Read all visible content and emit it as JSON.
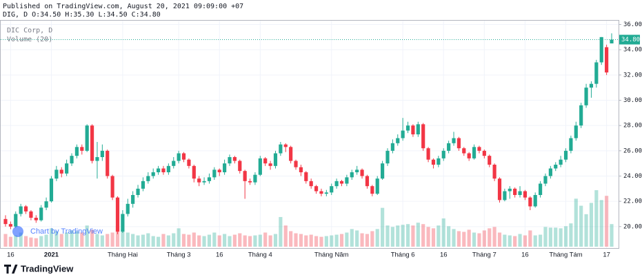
{
  "chart_data": {
    "type": "candlestick",
    "published": "Published on TradingView.com, August 20, 2021 09:09:00 +07",
    "ohlc_header": "DIG, D O:34.50 H:35.30 L:34.50 C:34.80",
    "legend": [
      "DIC Corp, D",
      "Volume (20)"
    ],
    "watermark": "Chart by TradingView",
    "footer_brand": "TradingView",
    "up_color": "#22ab94",
    "down_color": "#f23645",
    "grid": true,
    "ylim": [
      18.3,
      36.3
    ],
    "yticks": [
      {
        "value": 20,
        "label": "20.00"
      },
      {
        "value": 22,
        "label": "22.00"
      },
      {
        "value": 24,
        "label": "24.00"
      },
      {
        "value": 26,
        "label": "26.00"
      },
      {
        "value": 28,
        "label": "28.00"
      },
      {
        "value": 30,
        "label": "30.00"
      },
      {
        "value": 32,
        "label": "32.00"
      },
      {
        "value": 34,
        "label": "34.00"
      },
      {
        "value": 36,
        "label": "36.00"
      }
    ],
    "last_value_label": "34.80",
    "categories": [
      null,
      "16",
      null,
      null,
      null,
      null,
      null,
      null,
      null,
      "2021",
      null,
      null,
      null,
      null,
      null,
      null,
      null,
      null,
      null,
      null,
      null,
      null,
      null,
      "Tháng Hai",
      null,
      null,
      null,
      null,
      null,
      null,
      null,
      null,
      null,
      null,
      "Tháng 3",
      null,
      null,
      null,
      null,
      null,
      null,
      null,
      "16",
      null,
      null,
      null,
      null,
      null,
      null,
      null,
      "Tháng 4",
      null,
      null,
      null,
      null,
      null,
      null,
      null,
      null,
      null,
      null,
      null,
      null,
      null,
      "Tháng Năm",
      null,
      null,
      null,
      null,
      null,
      null,
      null,
      null,
      null,
      null,
      null,
      null,
      null,
      "Tháng 6",
      null,
      null,
      null,
      null,
      null,
      null,
      null,
      "16",
      null,
      null,
      null,
      null,
      null,
      null,
      null,
      "Tháng 7",
      null,
      null,
      null,
      null,
      null,
      null,
      null,
      "16",
      null,
      null,
      null,
      null,
      null,
      null,
      null,
      "Tháng Tám",
      null,
      null,
      null,
      null,
      null,
      null,
      null,
      "17",
      null
    ],
    "candles": [
      [
        20.6,
        20.9,
        20.0,
        20.2
      ],
      [
        20.2,
        20.4,
        19.8,
        20.0
      ],
      [
        20.0,
        21.2,
        19.9,
        21.0
      ],
      [
        21.0,
        21.8,
        20.8,
        21.6
      ],
      [
        21.6,
        21.7,
        21.0,
        21.2
      ],
      [
        21.2,
        21.3,
        20.5,
        20.7
      ],
      [
        20.7,
        20.9,
        20.3,
        20.5
      ],
      [
        20.5,
        21.7,
        20.4,
        21.5
      ],
      [
        21.5,
        22.3,
        21.3,
        22.0
      ],
      [
        22.0,
        24.0,
        21.9,
        23.8
      ],
      [
        23.8,
        24.8,
        23.6,
        24.5
      ],
      [
        24.5,
        24.7,
        23.9,
        24.2
      ],
      [
        24.2,
        25.3,
        24.0,
        25.0
      ],
      [
        25.0,
        25.8,
        24.8,
        25.6
      ],
      [
        25.6,
        26.5,
        25.4,
        26.3
      ],
      [
        26.3,
        26.5,
        25.7,
        26.0
      ],
      [
        26.0,
        28.1,
        25.9,
        28.0
      ],
      [
        28.0,
        28.1,
        25.0,
        25.2
      ],
      [
        25.2,
        26.7,
        23.8,
        25.5
      ],
      [
        25.5,
        26.5,
        25.2,
        26.0
      ],
      [
        26.0,
        26.1,
        23.8,
        24.0
      ],
      [
        24.0,
        24.1,
        22.1,
        22.3
      ],
      [
        22.3,
        22.4,
        19.4,
        19.6
      ],
      [
        19.6,
        21.3,
        19.5,
        21.0
      ],
      [
        21.0,
        22.2,
        20.8,
        21.8
      ],
      [
        21.8,
        22.8,
        21.5,
        22.5
      ],
      [
        22.5,
        23.3,
        22.3,
        23.0
      ],
      [
        23.0,
        23.9,
        22.8,
        23.6
      ],
      [
        23.6,
        24.3,
        23.4,
        24.0
      ],
      [
        24.0,
        24.6,
        23.8,
        24.3
      ],
      [
        24.3,
        24.8,
        24.1,
        24.6
      ],
      [
        24.6,
        24.8,
        24.1,
        24.3
      ],
      [
        24.3,
        25.0,
        24.1,
        24.8
      ],
      [
        24.8,
        25.5,
        24.6,
        25.2
      ],
      [
        25.2,
        26.0,
        25.0,
        25.8
      ],
      [
        25.8,
        25.9,
        25.1,
        25.3
      ],
      [
        25.3,
        25.4,
        24.6,
        24.8
      ],
      [
        24.8,
        24.9,
        23.5,
        23.8
      ],
      [
        23.8,
        24.0,
        23.2,
        23.5
      ],
      [
        23.5,
        23.9,
        23.3,
        23.6
      ],
      [
        23.6,
        24.2,
        23.4,
        23.9
      ],
      [
        23.9,
        24.7,
        23.7,
        24.5
      ],
      [
        24.5,
        24.6,
        24.0,
        24.3
      ],
      [
        24.3,
        25.3,
        24.1,
        25.0
      ],
      [
        25.0,
        25.7,
        24.8,
        25.5
      ],
      [
        25.5,
        25.6,
        25.0,
        25.2
      ],
      [
        25.2,
        25.3,
        24.2,
        24.4
      ],
      [
        24.4,
        24.5,
        22.2,
        23.6
      ],
      [
        23.6,
        23.8,
        23.3,
        23.5
      ],
      [
        23.5,
        24.3,
        23.3,
        24.1
      ],
      [
        24.1,
        25.6,
        24.0,
        25.4
      ],
      [
        25.4,
        25.5,
        24.8,
        25.0
      ],
      [
        25.0,
        25.2,
        24.5,
        24.8
      ],
      [
        24.8,
        26.0,
        24.6,
        25.8
      ],
      [
        25.8,
        26.7,
        25.6,
        26.5
      ],
      [
        26.5,
        26.6,
        25.9,
        26.3
      ],
      [
        26.3,
        26.4,
        25.0,
        25.2
      ],
      [
        25.2,
        25.3,
        24.5,
        24.7
      ],
      [
        24.7,
        24.9,
        24.0,
        24.3
      ],
      [
        24.3,
        24.4,
        23.4,
        23.6
      ],
      [
        23.6,
        23.8,
        23.0,
        23.2
      ],
      [
        23.2,
        23.3,
        22.6,
        22.8
      ],
      [
        22.8,
        23.0,
        22.4,
        22.6
      ],
      [
        22.6,
        22.9,
        22.4,
        22.7
      ],
      [
        22.7,
        23.4,
        22.5,
        23.2
      ],
      [
        23.2,
        23.8,
        23.0,
        23.6
      ],
      [
        23.6,
        23.7,
        23.2,
        23.4
      ],
      [
        23.4,
        24.1,
        23.2,
        23.9
      ],
      [
        23.9,
        24.5,
        23.7,
        24.3
      ],
      [
        24.3,
        24.8,
        24.1,
        24.5
      ],
      [
        24.5,
        24.6,
        23.8,
        24.0
      ],
      [
        24.0,
        24.1,
        23.0,
        23.2
      ],
      [
        23.2,
        23.3,
        22.4,
        22.6
      ],
      [
        22.6,
        24.0,
        22.5,
        23.8
      ],
      [
        23.8,
        25.2,
        23.7,
        25.0
      ],
      [
        25.0,
        26.2,
        24.8,
        26.0
      ],
      [
        26.0,
        26.9,
        25.8,
        26.6
      ],
      [
        26.6,
        27.3,
        26.4,
        27.0
      ],
      [
        27.0,
        28.6,
        26.8,
        27.6
      ],
      [
        27.6,
        28.3,
        27.4,
        28.0
      ],
      [
        28.0,
        28.1,
        27.1,
        27.3
      ],
      [
        27.3,
        28.3,
        27.1,
        28.1
      ],
      [
        28.1,
        28.2,
        26.0,
        26.2
      ],
      [
        26.2,
        26.3,
        25.1,
        25.3
      ],
      [
        25.3,
        25.4,
        24.6,
        24.9
      ],
      [
        24.9,
        25.6,
        24.7,
        25.4
      ],
      [
        25.4,
        26.2,
        25.2,
        26.0
      ],
      [
        26.0,
        26.8,
        25.8,
        26.6
      ],
      [
        26.6,
        27.5,
        26.4,
        27.0
      ],
      [
        27.0,
        27.1,
        26.0,
        26.2
      ],
      [
        26.2,
        26.3,
        25.6,
        25.8
      ],
      [
        25.8,
        25.9,
        25.2,
        25.4
      ],
      [
        25.4,
        26.5,
        25.3,
        26.3
      ],
      [
        26.3,
        26.4,
        25.8,
        26.0
      ],
      [
        26.0,
        26.1,
        25.4,
        25.6
      ],
      [
        25.6,
        25.7,
        24.7,
        24.9
      ],
      [
        24.9,
        25.0,
        23.6,
        23.8
      ],
      [
        23.8,
        23.9,
        21.9,
        22.1
      ],
      [
        22.1,
        23.0,
        22.0,
        22.8
      ],
      [
        22.8,
        23.2,
        22.2,
        23.0
      ],
      [
        23.0,
        23.1,
        22.3,
        22.5
      ],
      [
        22.5,
        23.2,
        22.3,
        22.8
      ],
      [
        22.8,
        22.9,
        22.1,
        22.3
      ],
      [
        22.3,
        22.4,
        21.3,
        21.6
      ],
      [
        21.6,
        22.7,
        21.5,
        22.5
      ],
      [
        22.5,
        23.6,
        22.3,
        23.4
      ],
      [
        23.4,
        24.2,
        23.2,
        24.0
      ],
      [
        24.0,
        24.8,
        23.8,
        24.6
      ],
      [
        24.6,
        25.1,
        24.4,
        24.9
      ],
      [
        24.9,
        25.6,
        24.7,
        25.3
      ],
      [
        25.3,
        26.2,
        25.1,
        26.0
      ],
      [
        26.0,
        27.2,
        25.8,
        27.0
      ],
      [
        27.0,
        28.3,
        26.8,
        28.0
      ],
      [
        28.0,
        29.8,
        27.8,
        29.6
      ],
      [
        29.6,
        31.3,
        29.4,
        31.0
      ],
      [
        31.0,
        31.5,
        30.2,
        31.3
      ],
      [
        31.3,
        33.2,
        31.0,
        33.0
      ],
      [
        33.0,
        35.0,
        32.8,
        35.0
      ],
      [
        34.2,
        34.4,
        32.0,
        32.2
      ],
      [
        34.5,
        35.3,
        34.5,
        34.8
      ]
    ],
    "volume": [
      1.8,
      1.4,
      1.6,
      2.0,
      1.5,
      1.3,
      1.2,
      1.5,
      1.7,
      2.6,
      2.2,
      1.8,
      2.0,
      2.3,
      2.2,
      2.0,
      3.0,
      2.4,
      1.8,
      1.6,
      1.8,
      2.0,
      2.9,
      2.5,
      2.0,
      1.8,
      1.6,
      1.7,
      1.9,
      1.5,
      1.4,
      1.8,
      1.6,
      1.9,
      2.6,
      1.8,
      1.7,
      2.0,
      1.6,
      1.5,
      1.7,
      2.0,
      1.6,
      1.8,
      1.5,
      1.7,
      1.9,
      1.6,
      1.5,
      1.6,
      1.7,
      2.0,
      1.6,
      1.8,
      4.2,
      3.0,
      2.2,
      1.9,
      1.8,
      1.6,
      1.7,
      1.5,
      1.4,
      1.5,
      1.6,
      1.7,
      1.8,
      2.0,
      2.5,
      2.3,
      1.9,
      1.8,
      2.2,
      2.5,
      5.5,
      3.0,
      2.8,
      3.0,
      3.1,
      3.2,
      3.0,
      3.4,
      3.2,
      2.8,
      2.6,
      3.0,
      4.0,
      2.9,
      2.5,
      2.2,
      2.1,
      2.4,
      2.0,
      1.9,
      2.3,
      2.6,
      2.8,
      2.0,
      1.7,
      1.6,
      1.5,
      1.8,
      1.6,
      2.3,
      1.6,
      1.7,
      2.8,
      2.7,
      2.7,
      2.6,
      2.9,
      3.3,
      6.8,
      5.8,
      4.6,
      6.2,
      8.0,
      6.6,
      7.2,
      3.2
    ]
  }
}
